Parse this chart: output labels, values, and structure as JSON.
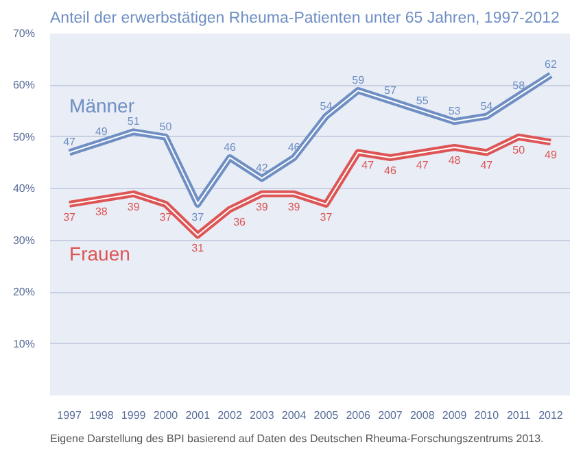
{
  "chart_data": {
    "type": "line",
    "title": "Anteil der erwerbstätigen Rheuma-Patienten unter 65 Jahren, 1997-2012",
    "categories": [
      "1997",
      "1998",
      "1999",
      "2000",
      "2001",
      "2002",
      "2003",
      "2004",
      "2005",
      "2006",
      "2007",
      "2008",
      "2009",
      "2010",
      "2011",
      "2012"
    ],
    "series": [
      {
        "name": "Männer",
        "color": "#6f8fc4",
        "values": [
          47,
          49,
          51,
          50,
          37,
          46,
          42,
          46,
          54,
          59,
          57,
          55,
          53,
          54,
          58,
          62
        ]
      },
      {
        "name": "Frauen",
        "color": "#dd5555",
        "values": [
          37,
          38,
          39,
          37,
          31,
          36,
          39,
          39,
          37,
          47,
          46,
          47,
          48,
          47,
          50,
          49
        ]
      }
    ],
    "ylim": [
      0,
      70
    ],
    "yticks": [
      {
        "value": 10,
        "label": "10%"
      },
      {
        "value": 20,
        "label": "20%"
      },
      {
        "value": 30,
        "label": "30%"
      },
      {
        "value": 40,
        "label": "40%"
      },
      {
        "value": 50,
        "label": "50%"
      },
      {
        "value": 60,
        "label": "60%"
      },
      {
        "value": 70,
        "label": "70%"
      }
    ],
    "grid": "y",
    "data_labels": true,
    "marker": "none",
    "line_style": "solid",
    "annotations": [
      "Eigene Darstellung des BPI basierend auf Daten des Deutschen Rheuma-Forschungszentrums 2013."
    ]
  }
}
